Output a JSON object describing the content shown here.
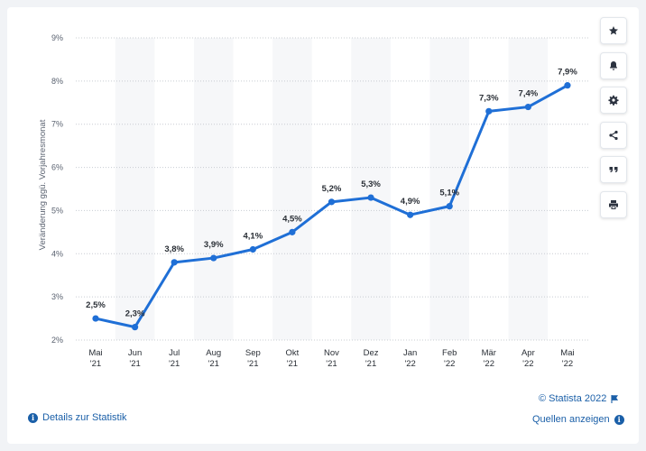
{
  "chart_data": {
    "type": "line",
    "categories": [
      "Mai '21",
      "Jun '21",
      "Jul '21",
      "Aug '21",
      "Sep '21",
      "Okt '21",
      "Nov '21",
      "Dez '21",
      "Jan '22",
      "Feb '22",
      "Mär '22",
      "Apr '22",
      "Mai '22"
    ],
    "category_lines": [
      [
        "Mai",
        "'21"
      ],
      [
        "Jun",
        "'21"
      ],
      [
        "Jul",
        "'21"
      ],
      [
        "Aug",
        "'21"
      ],
      [
        "Sep",
        "'21"
      ],
      [
        "Okt",
        "'21"
      ],
      [
        "Nov",
        "'21"
      ],
      [
        "Dez",
        "'21"
      ],
      [
        "Jan",
        "'22"
      ],
      [
        "Feb",
        "'22"
      ],
      [
        "Mär",
        "'22"
      ],
      [
        "Apr",
        "'22"
      ],
      [
        "Mai",
        "'22"
      ]
    ],
    "values": [
      2.5,
      2.3,
      3.8,
      3.9,
      4.1,
      4.5,
      5.2,
      5.3,
      4.9,
      5.1,
      7.3,
      7.4,
      7.9
    ],
    "data_labels": [
      "2,5%",
      "2,3%",
      "3,8%",
      "3,9%",
      "4,1%",
      "4,5%",
      "5,2%",
      "5,3%",
      "4,9%",
      "5,1%",
      "7,3%",
      "7,4%",
      "7,9%"
    ],
    "yticks": [
      2,
      3,
      4,
      5,
      6,
      7,
      8,
      9
    ],
    "ytick_labels": [
      "2%",
      "3%",
      "4%",
      "5%",
      "6%",
      "7%",
      "8%",
      "9%"
    ],
    "ylim": [
      2,
      9
    ],
    "ylabel": "Veränderung ggü. Vorjahresmonat",
    "xlabel": "",
    "title": "",
    "grid": true,
    "line_color": "#1f6fd6",
    "alt_band_color": "#f6f7f9"
  },
  "toolbar": {
    "buttons": [
      {
        "name": "star",
        "icon": "star-icon"
      },
      {
        "name": "bell",
        "icon": "bell-icon"
      },
      {
        "name": "gear",
        "icon": "gear-icon"
      },
      {
        "name": "share",
        "icon": "share-icon"
      },
      {
        "name": "quote",
        "icon": "quote-icon"
      },
      {
        "name": "print",
        "icon": "print-icon"
      }
    ]
  },
  "footer": {
    "copyright": "© Statista 2022",
    "details_label": "Details zur Statistik",
    "sources_label": "Quellen anzeigen"
  },
  "colors": {
    "link": "#1a5fa8",
    "page_bg": "#f1f3f6",
    "icon": "#2c3340"
  }
}
